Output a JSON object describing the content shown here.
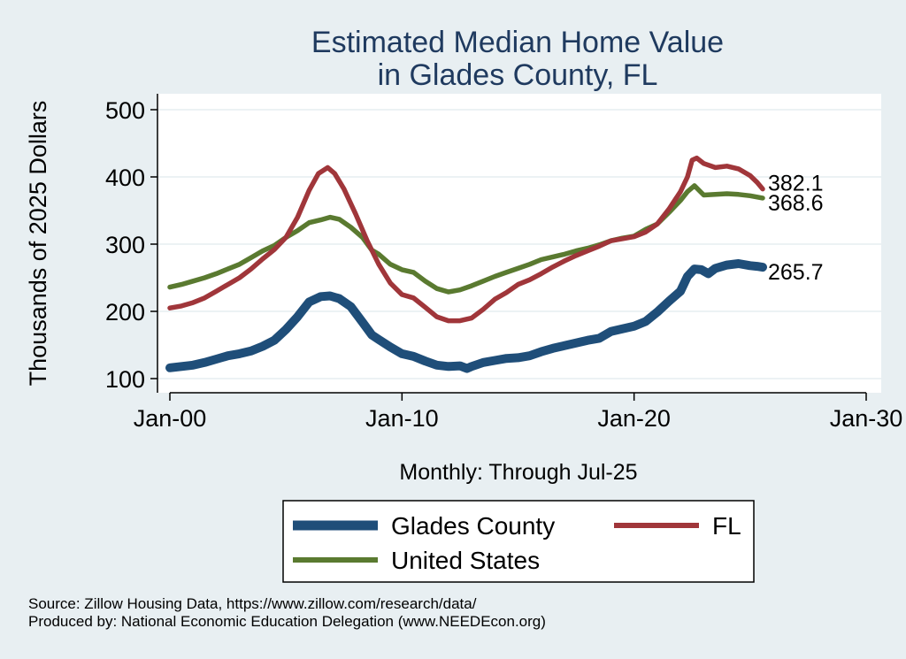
{
  "chart_data": {
    "type": "line",
    "title": [
      "Estimated Median Home Value",
      "in Glades County, FL"
    ],
    "ylabel": "Thousands of 2025 Dollars",
    "xlabel": "Monthly: Through Jul-25",
    "ylim": [
      100,
      500
    ],
    "yticks": [
      100,
      200,
      300,
      400,
      500
    ],
    "xlim": [
      2000,
      2030
    ],
    "xticks": [
      {
        "value": 2000,
        "label": "Jan-00"
      },
      {
        "value": 2010,
        "label": "Jan-10"
      },
      {
        "value": 2020,
        "label": "Jan-20"
      },
      {
        "value": 2030,
        "label": "Jan-30"
      }
    ],
    "grid": true,
    "legend_position": "bottom",
    "series": [
      {
        "name": "Glades County",
        "color": "#1f4e79",
        "end_label": "265.7",
        "x": [
          2000.0,
          2000.5,
          2001.0,
          2001.5,
          2002.0,
          2002.5,
          2003.0,
          2003.5,
          2004.0,
          2004.5,
          2005.0,
          2005.5,
          2006.0,
          2006.5,
          2006.9,
          2007.3,
          2007.8,
          2008.3,
          2008.7,
          2009.0,
          2009.5,
          2010.0,
          2010.5,
          2011.0,
          2011.5,
          2012.0,
          2012.5,
          2012.8,
          2013.0,
          2013.5,
          2014.0,
          2014.5,
          2015.0,
          2015.5,
          2016.0,
          2016.5,
          2017.0,
          2017.5,
          2018.0,
          2018.5,
          2019.0,
          2019.5,
          2020.0,
          2020.5,
          2021.0,
          2021.5,
          2022.0,
          2022.3,
          2022.6,
          2022.9,
          2023.2,
          2023.5,
          2024.0,
          2024.5,
          2025.0,
          2025.3,
          2025.54
        ],
        "y": [
          116,
          118,
          120,
          124,
          129,
          134,
          137,
          141,
          148,
          157,
          173,
          192,
          214,
          222,
          223,
          219,
          207,
          184,
          165,
          158,
          147,
          137,
          133,
          126,
          120,
          118,
          119,
          115,
          118,
          124,
          127,
          130,
          131,
          134,
          140,
          145,
          149,
          153,
          157,
          160,
          170,
          174,
          178,
          185,
          199,
          215,
          230,
          252,
          263,
          262,
          256,
          264,
          269,
          271,
          268,
          267,
          265.7
        ]
      },
      {
        "name": "FL",
        "color": "#a0363a",
        "end_label": "382.1",
        "x": [
          2000.0,
          2000.5,
          2001.0,
          2001.5,
          2002.0,
          2002.5,
          2003.0,
          2003.5,
          2004.0,
          2004.5,
          2005.0,
          2005.5,
          2006.0,
          2006.4,
          2006.8,
          2007.1,
          2007.5,
          2008.0,
          2008.5,
          2009.0,
          2009.5,
          2010.0,
          2010.5,
          2011.0,
          2011.5,
          2012.0,
          2012.5,
          2013.0,
          2013.5,
          2014.0,
          2014.5,
          2015.0,
          2015.5,
          2016.0,
          2016.5,
          2017.0,
          2017.5,
          2018.0,
          2018.5,
          2019.0,
          2019.5,
          2020.0,
          2020.5,
          2021.0,
          2021.5,
          2022.0,
          2022.3,
          2022.5,
          2022.7,
          2023.0,
          2023.5,
          2024.0,
          2024.5,
          2025.0,
          2025.3,
          2025.54
        ],
        "y": [
          205,
          208,
          213,
          220,
          230,
          240,
          250,
          263,
          278,
          292,
          310,
          340,
          380,
          405,
          414,
          405,
          382,
          345,
          305,
          270,
          242,
          225,
          220,
          206,
          192,
          186,
          186,
          190,
          203,
          218,
          228,
          240,
          247,
          256,
          266,
          275,
          283,
          290,
          297,
          305,
          308,
          311,
          318,
          330,
          352,
          378,
          400,
          425,
          428,
          420,
          414,
          416,
          412,
          402,
          392,
          382.1
        ]
      },
      {
        "name": "United States",
        "color": "#5a7a30",
        "end_label": "368.6",
        "x": [
          2000.0,
          2000.5,
          2001.0,
          2001.5,
          2002.0,
          2002.5,
          2003.0,
          2003.5,
          2004.0,
          2004.5,
          2005.0,
          2005.5,
          2006.0,
          2006.5,
          2006.9,
          2007.3,
          2007.8,
          2008.3,
          2008.7,
          2009.0,
          2009.5,
          2010.0,
          2010.5,
          2011.0,
          2011.5,
          2012.0,
          2012.5,
          2013.0,
          2013.5,
          2014.0,
          2014.5,
          2015.0,
          2015.5,
          2016.0,
          2016.5,
          2017.0,
          2017.5,
          2018.0,
          2018.5,
          2019.0,
          2019.5,
          2020.0,
          2020.5,
          2021.0,
          2021.5,
          2022.0,
          2022.3,
          2022.6,
          2023.0,
          2023.5,
          2024.0,
          2024.5,
          2025.0,
          2025.54
        ],
        "y": [
          236,
          240,
          245,
          250,
          256,
          263,
          270,
          280,
          290,
          298,
          310,
          320,
          332,
          336,
          340,
          337,
          325,
          310,
          291,
          285,
          270,
          262,
          258,
          245,
          234,
          229,
          232,
          238,
          245,
          252,
          258,
          264,
          270,
          277,
          281,
          285,
          290,
          294,
          299,
          305,
          309,
          312,
          322,
          330,
          347,
          365,
          378,
          387,
          373,
          374,
          375,
          374,
          372,
          368.6
        ]
      }
    ]
  },
  "footer": {
    "source": "Source: Zillow Housing Data, https://www.zillow.com/research/data/",
    "produced": "Produced by: National Economic Education Delegation (www.NEEDEcon.org)"
  }
}
